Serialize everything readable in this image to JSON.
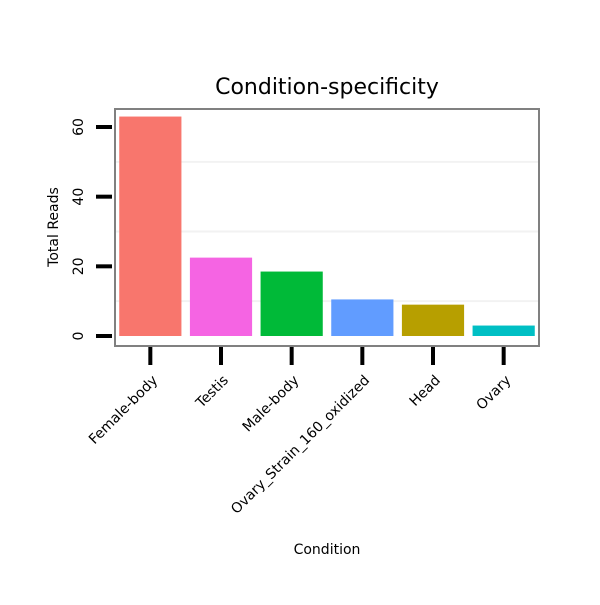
{
  "chart_data": {
    "type": "bar",
    "title": "Condition-specificity",
    "xlabel": "Condition",
    "ylabel": "Total Reads",
    "categories": [
      "Female-body",
      "Testis",
      "Male-body",
      "Ovary_Strain_160_oxidized",
      "Head",
      "Ovary"
    ],
    "values": [
      63,
      22.5,
      18.5,
      10.5,
      9,
      3
    ],
    "colors": [
      "#F8766D",
      "#F564E3",
      "#00BA38",
      "#619CFF",
      "#B79F00",
      "#00BFC4"
    ],
    "ylim": [
      0,
      66
    ],
    "yticks": [
      0,
      20,
      40,
      60
    ],
    "grid": true,
    "legend": "none"
  }
}
